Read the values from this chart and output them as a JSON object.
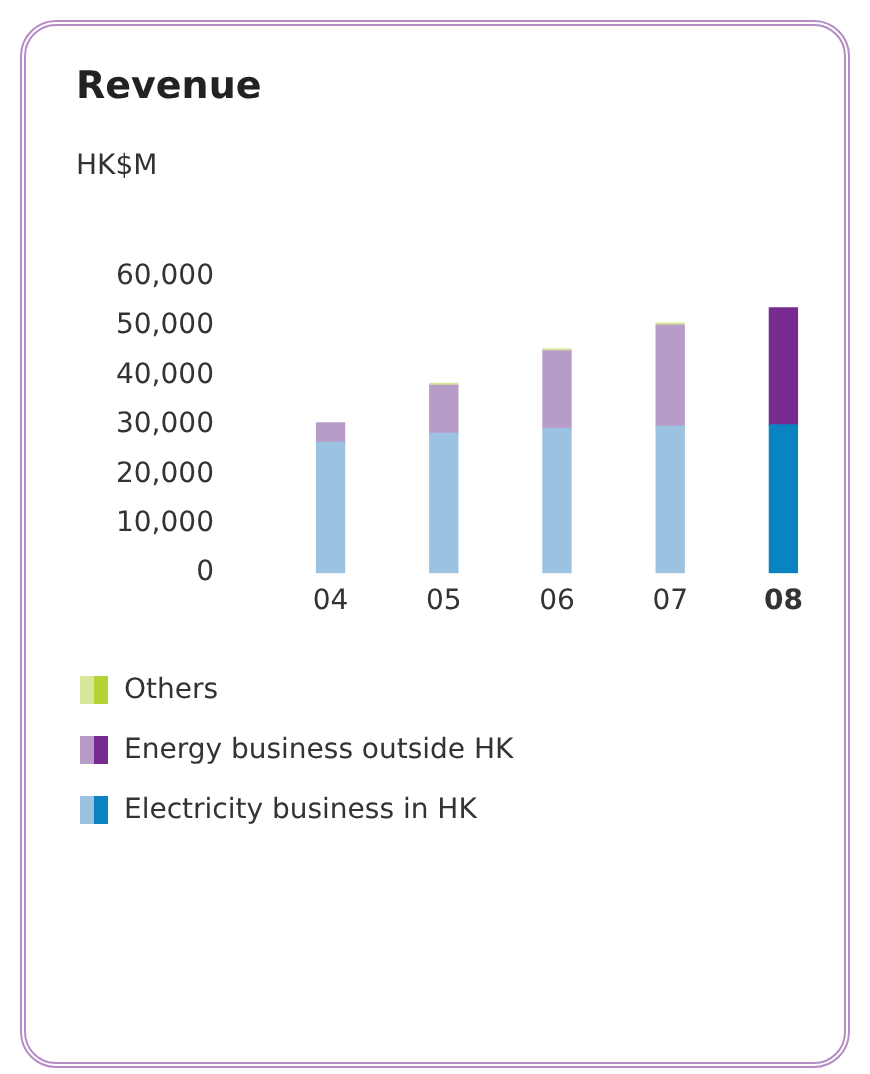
{
  "chart_data": {
    "type": "bar",
    "title": "Revenue",
    "ylabel": "HK$M",
    "stacked": true,
    "categories": [
      "04",
      "05",
      "06",
      "07",
      "08"
    ],
    "series": [
      {
        "name": "Electricity business in HK",
        "color": "#9cc2e2",
        "colors": [
          "#9cc2e2",
          "#9cc2e2",
          "#9cc2e2",
          "#9cc2e2",
          "#0a84c0"
        ],
        "values": [
          26500,
          28300,
          29300,
          29700,
          30000
        ]
      },
      {
        "name": "Energy business outside HK",
        "color": "#b89cc8",
        "colors": [
          "#b89cc8",
          "#b89cc8",
          "#b89cc8",
          "#b89cc8",
          "#772a90"
        ],
        "values": [
          3900,
          9700,
          15700,
          20500,
          23700
        ]
      },
      {
        "name": "Others",
        "color": "#d8e89a",
        "colors": [
          "#d8e89a",
          "#d8e89a",
          "#d8e89a",
          "#d8e89a",
          "#b4d334"
        ],
        "values": [
          null,
          400,
          400,
          400,
          null
        ]
      }
    ],
    "ylim": [
      0,
      60000
    ],
    "yticks": [
      0,
      {
        "value": 10000,
        "label": "10,000"
      },
      {
        "value": 20000,
        "label": "20,000"
      },
      {
        "value": 30000,
        "label": "30,000"
      },
      {
        "value": 40000,
        "label": "40,000"
      },
      {
        "value": 50000,
        "label": "50,000"
      },
      {
        "value": 60000,
        "label": "60,000"
      }
    ],
    "grid": false,
    "legend": "bottom"
  }
}
